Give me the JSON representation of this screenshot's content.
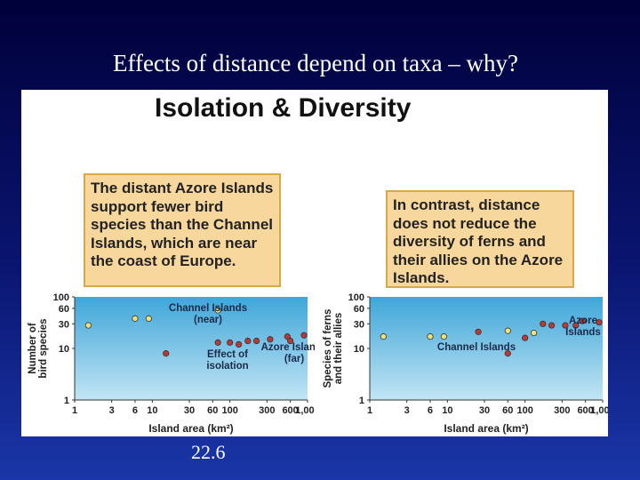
{
  "slide": {
    "title": "Effects of distance depend on taxa – why?",
    "footer": "22.6"
  },
  "figure": {
    "title": "Isolation & Diversity",
    "left_callout": "The distant Azore Islands support fewer bird species than the Channel Islands, which are near the coast of Europe.",
    "right_callout": "In contrast, distance does not reduce the diversity of ferns and their allies on the Azore Islands."
  },
  "chart_data": [
    {
      "type": "scatter",
      "title": "",
      "xlabel": "Island area (km²)",
      "ylabel": "Number of bird species",
      "x_scale": "log",
      "y_scale": "log",
      "xlim": [
        1,
        1000
      ],
      "ylim": [
        1,
        100
      ],
      "x_ticks": [
        "1",
        "3",
        "6",
        "10",
        "30",
        "60",
        "100",
        "300",
        "600",
        "1,000"
      ],
      "y_ticks": [
        "1",
        "10",
        "30",
        "60",
        "100"
      ],
      "grid": false,
      "series": [
        {
          "name": "Channel Islands",
          "color": "#f2e07a",
          "points": [
            [
              1.5,
              28
            ],
            [
              6,
              38
            ],
            [
              9,
              38
            ],
            [
              70,
              55
            ]
          ]
        },
        {
          "name": "Azore Islands",
          "color": "#b83a36",
          "points": [
            [
              15,
              8
            ],
            [
              70,
              13
            ],
            [
              100,
              13
            ],
            [
              130,
              12
            ],
            [
              170,
              14
            ],
            [
              220,
              14
            ],
            [
              330,
              15
            ],
            [
              550,
              17
            ],
            [
              600,
              14
            ],
            [
              900,
              18
            ]
          ]
        }
      ],
      "annotations": [
        {
          "text": "Channel Islands (near)",
          "target": "Channel Islands"
        },
        {
          "text": "Azore Islands (far)",
          "target": "Azore Islands"
        },
        {
          "text": "Effect of isolation"
        }
      ]
    },
    {
      "type": "scatter",
      "title": "",
      "xlabel": "Island area (km²)",
      "ylabel": "Species of ferns and their allies",
      "x_scale": "log",
      "y_scale": "log",
      "xlim": [
        1,
        1000
      ],
      "ylim": [
        1,
        100
      ],
      "x_ticks": [
        "1",
        "3",
        "6",
        "10",
        "30",
        "60",
        "100",
        "300",
        "600",
        "1,000"
      ],
      "y_ticks": [
        "1",
        "10",
        "30",
        "60",
        "100"
      ],
      "grid": false,
      "series": [
        {
          "name": "Channel Islands",
          "color": "#f2e07a",
          "points": [
            [
              1.5,
              17
            ],
            [
              6,
              17
            ],
            [
              9,
              17
            ],
            [
              60,
              22
            ],
            [
              130,
              20
            ]
          ]
        },
        {
          "name": "Azore Islands",
          "color": "#b83a36",
          "points": [
            [
              25,
              21
            ],
            [
              60,
              8
            ],
            [
              100,
              16
            ],
            [
              170,
              30
            ],
            [
              220,
              28
            ],
            [
              330,
              28
            ],
            [
              450,
              28
            ],
            [
              550,
              34
            ],
            [
              900,
              32
            ]
          ]
        }
      ],
      "annotations": [
        {
          "text": "Channel Islands",
          "target": "Channel Islands"
        },
        {
          "text": "Azore Islands",
          "target": "Azore Islands"
        }
      ]
    }
  ]
}
